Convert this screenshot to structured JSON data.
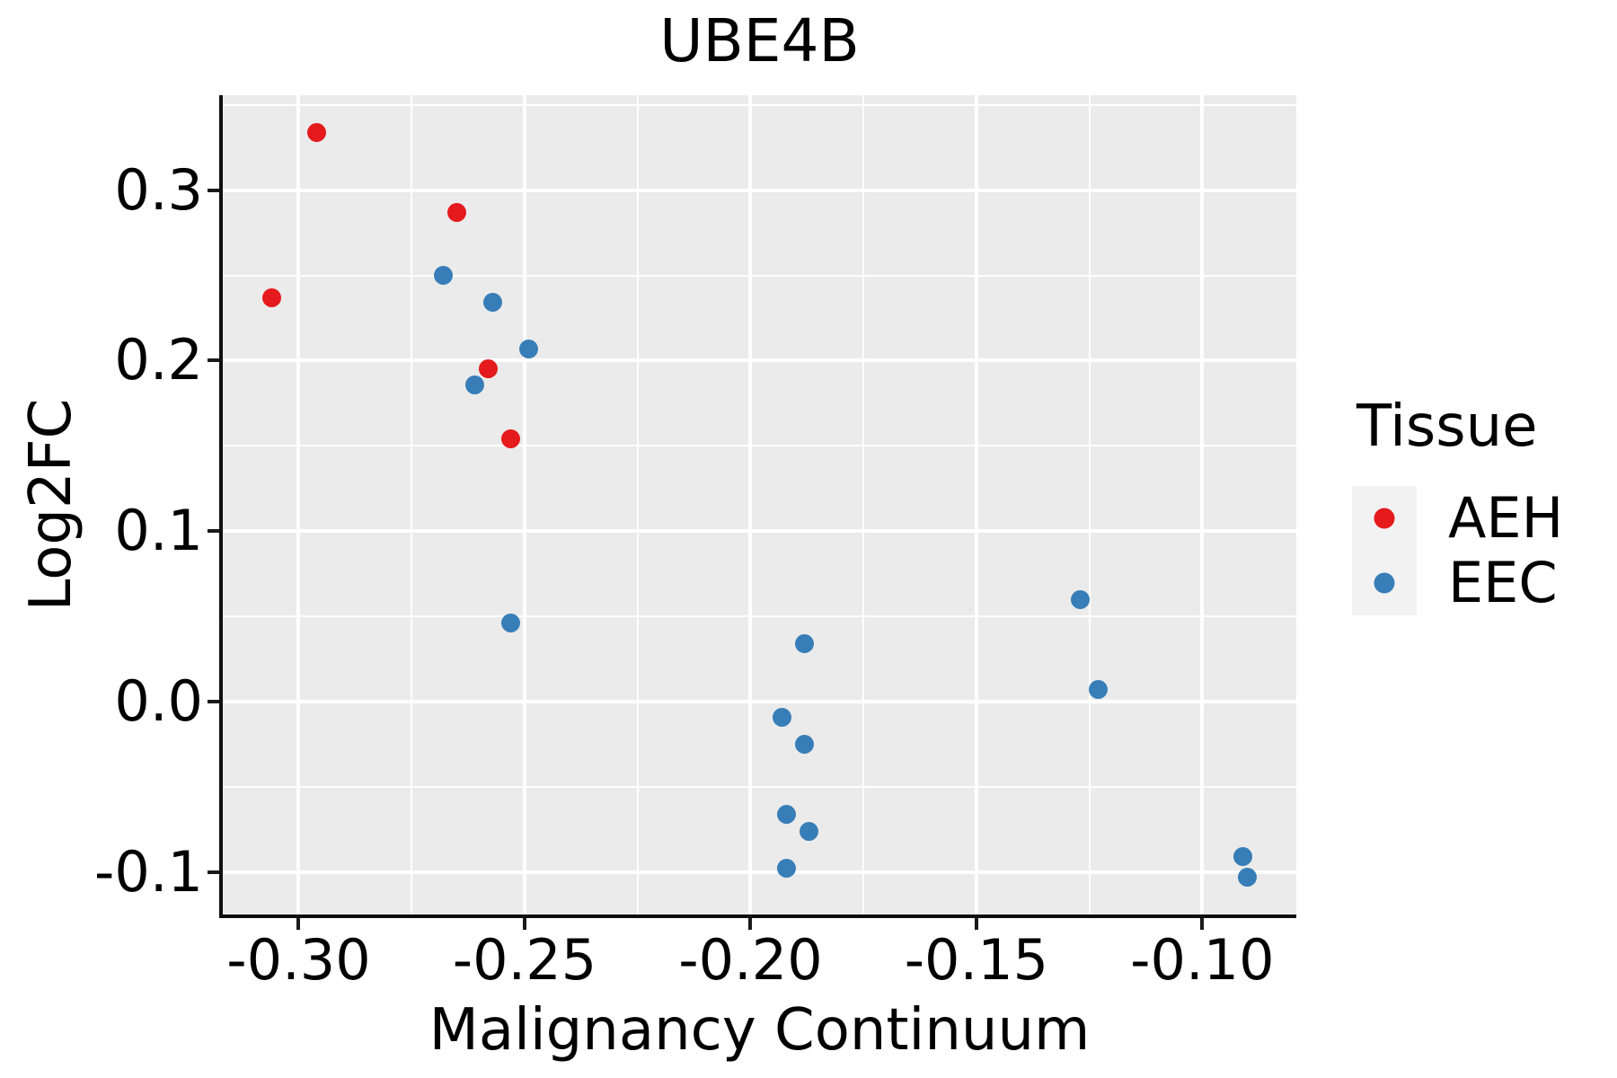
{
  "legend": {
    "title": "Tissue",
    "items": [
      {
        "label": "AEH",
        "color": "#E41A1C"
      },
      {
        "label": "EEC",
        "color": "#377EB8"
      }
    ]
  },
  "colors": {
    "panel_background": "#EBEBEB",
    "gridline": "#FFFFFF",
    "axis_line": "#0F0F0F",
    "text": "#000000",
    "legend_key_background": "#F2F2F2",
    "aeh_red": "#E41A1C",
    "eec_blue": "#377EB8"
  },
  "chart_data": {
    "type": "scatter",
    "title": "UBE4B",
    "xlabel": "Malignancy Continuum",
    "ylabel": "Log2FC",
    "xlim": [
      -0.3168,
      -0.0792
    ],
    "ylim": [
      -0.1249,
      0.3557
    ],
    "x_ticks": [
      -0.3,
      -0.25,
      -0.2,
      -0.15,
      -0.1
    ],
    "x_tick_labels": [
      "-0.30",
      "-0.25",
      "-0.20",
      "-0.15",
      "-0.10"
    ],
    "x_minor_ticks": [
      -0.275,
      -0.225,
      -0.175,
      -0.125
    ],
    "y_ticks": [
      0.3,
      0.2,
      0.1,
      0.0,
      -0.1
    ],
    "y_tick_labels": [
      "0.3",
      "0.2",
      "0.1",
      "0.0",
      "-0.1"
    ],
    "y_minor_ticks": [
      0.35,
      0.25,
      0.15,
      0.05,
      -0.05
    ],
    "grid": "white major and minor gridlines on gray panel",
    "legend_position": "right",
    "series": [
      {
        "name": "AEH",
        "color": "#E41A1C",
        "points": [
          [
            -0.306,
            0.237
          ],
          [
            -0.296,
            0.334
          ],
          [
            -0.265,
            0.287
          ],
          [
            -0.258,
            0.195
          ],
          [
            -0.253,
            0.154
          ]
        ]
      },
      {
        "name": "EEC",
        "color": "#377EB8",
        "points": [
          [
            -0.268,
            0.25
          ],
          [
            -0.261,
            0.186
          ],
          [
            -0.257,
            0.234
          ],
          [
            -0.253,
            0.046
          ],
          [
            -0.249,
            0.207
          ],
          [
            -0.193,
            -0.009
          ],
          [
            -0.192,
            -0.066
          ],
          [
            -0.192,
            -0.098
          ],
          [
            -0.188,
            0.034
          ],
          [
            -0.188,
            -0.025
          ],
          [
            -0.187,
            -0.076
          ],
          [
            -0.127,
            0.06
          ],
          [
            -0.123,
            0.007
          ],
          [
            -0.091,
            -0.091
          ],
          [
            -0.09,
            -0.103
          ]
        ]
      }
    ]
  }
}
